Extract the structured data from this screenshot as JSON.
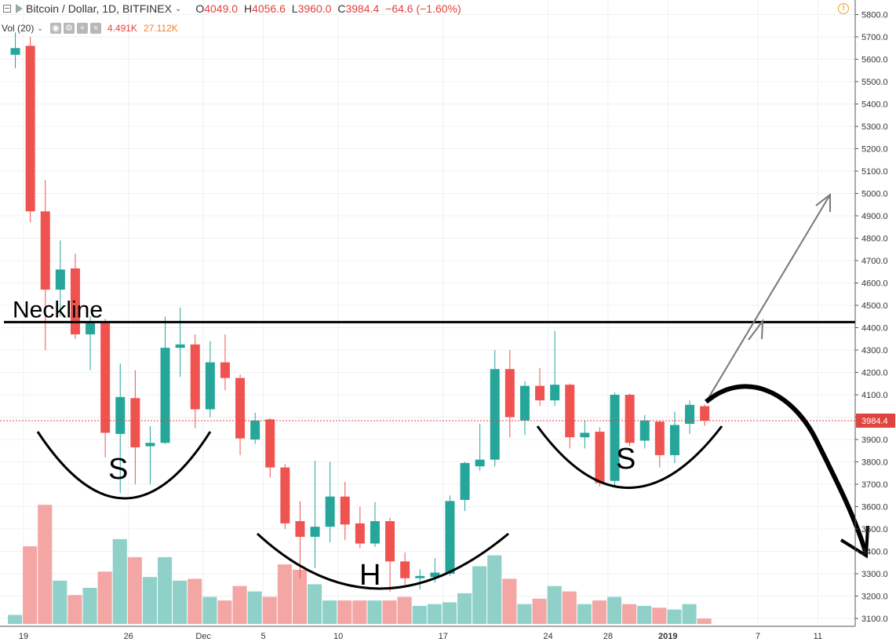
{
  "header": {
    "symbol": "Bitcoin / Dollar, 1D, BITFINEX",
    "dropdown_icon": "chevron-down-icon",
    "o_label": "O",
    "o_value": "4049.0",
    "h_label": "H",
    "h_value": "4056.6",
    "l_label": "L",
    "l_value": "3960.0",
    "c_label": "C",
    "c_value": "3984.4",
    "change": "−64.6 (−1.60%)",
    "alert_icon": "alert-circle-icon"
  },
  "volume_header": {
    "label": "Vol (20)",
    "value": "4.491K",
    "ma_value": "27.112K"
  },
  "colors": {
    "up": "#26a69a",
    "down": "#ef5350",
    "up_volume": "#8fd1c8",
    "down_volume": "#f4a6a4",
    "price_line": "#e0443e",
    "ma_text": "#f08030"
  },
  "chart_data": {
    "type": "candlestick",
    "symbol": "Bitcoin / Dollar",
    "timeframe": "1D",
    "exchange": "BITFINEX",
    "y_axis": {
      "min": 3100,
      "max": 5800,
      "step": 100,
      "ticks": [
        "5800.0",
        "5700.0",
        "5600.0",
        "5500.0",
        "5400.0",
        "5300.0",
        "5200.0",
        "5100.0",
        "5000.0",
        "4900.0",
        "4800.0",
        "4700.0",
        "4600.0",
        "4500.0",
        "4400.0",
        "4300.0",
        "4200.0",
        "4100.0",
        "4000.0",
        "3900.0",
        "3800.0",
        "3700.0",
        "3600.0",
        "3500.0",
        "3400.0",
        "3300.0",
        "3200.0",
        "3100.0"
      ]
    },
    "x_axis": {
      "labels": [
        {
          "text": "19",
          "day": 0,
          "bold": false
        },
        {
          "text": "26",
          "day": 7,
          "bold": false
        },
        {
          "text": "Dec",
          "day": 12,
          "bold": false
        },
        {
          "text": "5",
          "day": 16,
          "bold": false
        },
        {
          "text": "10",
          "day": 21,
          "bold": false
        },
        {
          "text": "17",
          "day": 28,
          "bold": false
        },
        {
          "text": "24",
          "day": 35,
          "bold": false
        },
        {
          "text": "28",
          "day": 39,
          "bold": false
        },
        {
          "text": "2019",
          "day": 43,
          "bold": true
        },
        {
          "text": "7",
          "day": 49,
          "bold": false
        },
        {
          "text": "11",
          "day": 53,
          "bold": false
        }
      ]
    },
    "candles": [
      {
        "o": 5620,
        "h": 5720,
        "l": 5560,
        "c": 5650
      },
      {
        "o": 5660,
        "h": 5700,
        "l": 4870,
        "c": 4920
      },
      {
        "o": 4920,
        "h": 5060,
        "l": 4300,
        "c": 4570
      },
      {
        "o": 4570,
        "h": 4790,
        "l": 4450,
        "c": 4660
      },
      {
        "o": 4665,
        "h": 4730,
        "l": 4350,
        "c": 4370
      },
      {
        "o": 4370,
        "h": 4450,
        "l": 4210,
        "c": 4420
      },
      {
        "o": 4420,
        "h": 4440,
        "l": 3820,
        "c": 3930
      },
      {
        "o": 3925,
        "h": 4240,
        "l": 3660,
        "c": 4090
      },
      {
        "o": 4085,
        "h": 4210,
        "l": 3700,
        "c": 3865
      },
      {
        "o": 3870,
        "h": 3960,
        "l": 3700,
        "c": 3885
      },
      {
        "o": 3885,
        "h": 4450,
        "l": 3880,
        "c": 4310
      },
      {
        "o": 4310,
        "h": 4490,
        "l": 4180,
        "c": 4325
      },
      {
        "o": 4325,
        "h": 4370,
        "l": 3950,
        "c": 4035
      },
      {
        "o": 4035,
        "h": 4340,
        "l": 4000,
        "c": 4245
      },
      {
        "o": 4245,
        "h": 4370,
        "l": 4120,
        "c": 4175
      },
      {
        "o": 4175,
        "h": 4190,
        "l": 3830,
        "c": 3905
      },
      {
        "o": 3900,
        "h": 4020,
        "l": 3880,
        "c": 3985
      },
      {
        "o": 3990,
        "h": 3995,
        "l": 3730,
        "c": 3775
      },
      {
        "o": 3775,
        "h": 3790,
        "l": 3500,
        "c": 3525
      },
      {
        "o": 3535,
        "h": 3625,
        "l": 3280,
        "c": 3465
      },
      {
        "o": 3465,
        "h": 3805,
        "l": 3325,
        "c": 3510
      },
      {
        "o": 3510,
        "h": 3800,
        "l": 3440,
        "c": 3645
      },
      {
        "o": 3645,
        "h": 3710,
        "l": 3450,
        "c": 3520
      },
      {
        "o": 3525,
        "h": 3600,
        "l": 3415,
        "c": 3435
      },
      {
        "o": 3435,
        "h": 3620,
        "l": 3420,
        "c": 3535
      },
      {
        "o": 3535,
        "h": 3550,
        "l": 3220,
        "c": 3355
      },
      {
        "o": 3355,
        "h": 3395,
        "l": 3250,
        "c": 3280
      },
      {
        "o": 3280,
        "h": 3320,
        "l": 3230,
        "c": 3290
      },
      {
        "o": 3285,
        "h": 3370,
        "l": 3260,
        "c": 3305
      },
      {
        "o": 3300,
        "h": 3650,
        "l": 3290,
        "c": 3625
      },
      {
        "o": 3630,
        "h": 3800,
        "l": 3580,
        "c": 3795
      },
      {
        "o": 3780,
        "h": 3970,
        "l": 3760,
        "c": 3810
      },
      {
        "o": 3810,
        "h": 4300,
        "l": 3780,
        "c": 4215
      },
      {
        "o": 4215,
        "h": 4300,
        "l": 3910,
        "c": 4000
      },
      {
        "o": 3985,
        "h": 4160,
        "l": 3920,
        "c": 4140
      },
      {
        "o": 4140,
        "h": 4220,
        "l": 4050,
        "c": 4075
      },
      {
        "o": 4075,
        "h": 4385,
        "l": 4050,
        "c": 4145
      },
      {
        "o": 4145,
        "h": 4150,
        "l": 3860,
        "c": 3910
      },
      {
        "o": 3910,
        "h": 3985,
        "l": 3860,
        "c": 3930
      },
      {
        "o": 3935,
        "h": 3955,
        "l": 3690,
        "c": 3705
      },
      {
        "o": 3715,
        "h": 4110,
        "l": 3695,
        "c": 4100
      },
      {
        "o": 4100,
        "h": 4105,
        "l": 3870,
        "c": 3885
      },
      {
        "o": 3895,
        "h": 4010,
        "l": 3860,
        "c": 3985
      },
      {
        "o": 3980,
        "h": 3985,
        "l": 3775,
        "c": 3830
      },
      {
        "o": 3830,
        "h": 4025,
        "l": 3795,
        "c": 3965
      },
      {
        "o": 3970,
        "h": 4075,
        "l": 3925,
        "c": 4055
      },
      {
        "o": 4049,
        "h": 4057,
        "l": 3960,
        "c": 3984.4
      }
    ],
    "volume_heights": [
      0.05,
      0.43,
      0.66,
      0.24,
      0.16,
      0.2,
      0.29,
      0.47,
      0.37,
      0.26,
      0.37,
      0.24,
      0.25,
      0.15,
      0.13,
      0.21,
      0.18,
      0.15,
      0.33,
      0.3,
      0.22,
      0.13,
      0.13,
      0.13,
      0.13,
      0.13,
      0.15,
      0.1,
      0.11,
      0.12,
      0.17,
      0.32,
      0.38,
      0.25,
      0.11,
      0.14,
      0.21,
      0.18,
      0.11,
      0.13,
      0.15,
      0.11,
      0.1,
      0.09,
      0.08,
      0.11,
      0.03
    ],
    "last_price": "3984.4",
    "annotations": {
      "neckline_label": "Neckline",
      "neckline_price": 4425,
      "left_shoulder_label": "S",
      "head_label": "H",
      "right_shoulder_label": "S"
    }
  }
}
